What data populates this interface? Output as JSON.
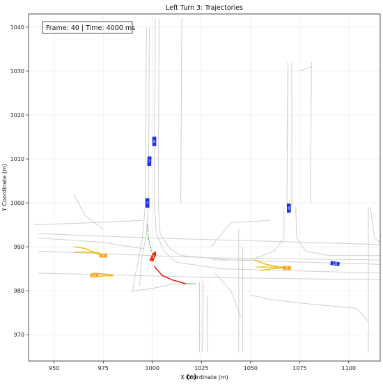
{
  "chart_data": {
    "type": "scatter",
    "title": "Left Turn 3: Trajectories",
    "xlabel": "X Coordinate (m)",
    "ylabel": "Y Coordinate (m)",
    "xlim": [
      937,
      1116
    ],
    "ylim": [
      964,
      1043
    ],
    "x_ticks": [
      950,
      975,
      1000,
      1025,
      1050,
      1075,
      1100
    ],
    "y_ticks": [
      970,
      980,
      990,
      1000,
      1010,
      1020,
      1030,
      1040
    ],
    "grid": true,
    "annotation": "Frame: 40 | Time: 4000 ms",
    "caption": "(c)",
    "lanes": [
      [
        [
          1001.5,
          1042
        ],
        [
          1001,
          1000
        ],
        [
          1002,
          993
        ],
        [
          1006,
          989
        ],
        [
          1012,
          986.5
        ],
        [
          1035,
          985
        ],
        [
          1116,
          984
        ]
      ],
      [
        [
          1003.5,
          1042
        ],
        [
          1003,
          1000
        ],
        [
          1004,
          993
        ],
        [
          1009,
          989.5
        ],
        [
          1015,
          988
        ],
        [
          1040,
          987
        ],
        [
          1116,
          986
        ]
      ],
      [
        [
          997,
          1040
        ],
        [
          996.5,
          1000
        ],
        [
          995,
          992
        ],
        [
          993,
          987
        ],
        [
          991,
          983
        ],
        [
          990,
          979.5
        ]
      ],
      [
        [
          998.5,
          1040
        ],
        [
          998,
          1000
        ],
        [
          997,
          993
        ],
        [
          994.5,
          987
        ],
        [
          993.5,
          981
        ]
      ],
      [
        [
          1015,
          1042
        ],
        [
          1014.5,
          1000
        ]
      ],
      [
        [
          1069,
          1032
        ],
        [
          1068.5,
          999
        ]
      ],
      [
        [
          1071,
          1032
        ],
        [
          1071,
          999
        ]
      ],
      [
        [
          1067,
          999
        ],
        [
          1067,
          992
        ],
        [
          1062,
          989
        ],
        [
          1050,
          987
        ],
        [
          1030,
          987
        ]
      ],
      [
        [
          1073,
          999
        ],
        [
          1073.5,
          992
        ],
        [
          1078,
          989
        ],
        [
          1090,
          988
        ],
        [
          1116,
          988
        ]
      ],
      [
        [
          1069,
          1030
        ],
        [
          1068.5,
          1012
        ]
      ],
      [
        [
          942,
          993
        ],
        [
          1000,
          992
        ],
        [
          1040,
          991.5
        ],
        [
          1116,
          990.5
        ]
      ],
      [
        [
          942,
          989
        ],
        [
          1000,
          988
        ],
        [
          1030,
          987.5
        ],
        [
          1116,
          987
        ]
      ],
      [
        [
          942,
          984
        ],
        [
          990,
          983.5
        ],
        [
          1030,
          983
        ],
        [
          1116,
          982.5
        ]
      ],
      [
        [
          942,
          992
        ],
        [
          975,
          991
        ],
        [
          996,
          989.5
        ]
      ],
      [
        [
          940,
          995
        ],
        [
          970,
          995.5
        ],
        [
          995,
          996
        ]
      ],
      [
        [
          960,
          1002
        ],
        [
          966,
          997
        ],
        [
          975,
          994
        ]
      ],
      [
        [
          1024,
          982
        ],
        [
          1024,
          966
        ]
      ],
      [
        [
          1026,
          982
        ],
        [
          1025.5,
          966
        ]
      ],
      [
        [
          1028,
          979
        ],
        [
          1028,
          966
        ]
      ],
      [
        [
          1044,
          994
        ],
        [
          1044,
          966
        ]
      ],
      [
        [
          1046,
          990
        ],
        [
          1046,
          966
        ]
      ],
      [
        [
          1032,
          984
        ],
        [
          1040,
          980
        ],
        [
          1045,
          974
        ]
      ],
      [
        [
          1050,
          979
        ],
        [
          1060,
          978
        ],
        [
          1080,
          977
        ],
        [
          1104,
          976
        ],
        [
          1110,
          973
        ]
      ],
      [
        [
          1110,
          999
        ],
        [
          1110,
          966
        ]
      ],
      [
        [
          1111,
          999
        ],
        [
          1113,
          992
        ],
        [
          1116,
          991
        ]
      ],
      [
        [
          1030,
          990
        ],
        [
          1040,
          995.5
        ],
        [
          1060,
          996
        ]
      ],
      [
        [
          990,
          980
        ],
        [
          1000,
          980.5
        ],
        [
          1010,
          981.5
        ],
        [
          1020,
          981.5
        ]
      ],
      [
        [
          1081,
          1032
        ],
        [
          1080.5,
          1000
        ]
      ],
      [
        [
          1081,
          1031
        ],
        [
          1075,
          1030
        ]
      ]
    ],
    "trajectories": [
      {
        "color": "#e3170d",
        "width": 1.5,
        "points": [
          [
            1001,
            985.5
          ],
          [
            1005,
            983.5
          ],
          [
            1010,
            982.5
          ],
          [
            1017,
            981.6
          ]
        ]
      },
      {
        "color": "#f5b400",
        "width": 1.3,
        "points": [
          [
            960,
            990
          ],
          [
            966,
            989.6
          ],
          [
            973,
            988.2
          ]
        ]
      },
      {
        "color": "#f5b400",
        "width": 1.3,
        "points": [
          [
            961,
            988.8
          ],
          [
            966,
            988.8
          ],
          [
            973,
            988.6
          ]
        ]
      },
      {
        "color": "#f5b400",
        "width": 1.3,
        "points": [
          [
            970,
            984
          ],
          [
            976,
            983.8
          ],
          [
            980,
            983.6
          ]
        ]
      },
      {
        "color": "#f5b400",
        "width": 1.3,
        "points": [
          [
            971,
            983.2
          ],
          [
            976,
            983.4
          ],
          [
            980,
            983.4
          ]
        ]
      },
      {
        "color": "#f5b400",
        "width": 1.3,
        "points": [
          [
            1052,
            987
          ],
          [
            1058,
            986
          ],
          [
            1067,
            985.2
          ]
        ]
      },
      {
        "color": "#f5b400",
        "width": 1.3,
        "points": [
          [
            1053,
            985.4
          ],
          [
            1060,
            985.4
          ],
          [
            1067,
            985.4
          ]
        ]
      },
      {
        "color": "#f5b400",
        "width": 1.3,
        "points": [
          [
            1055,
            984.6
          ],
          [
            1061,
            985
          ],
          [
            1067,
            985.2
          ]
        ]
      },
      {
        "color": "#2ca02c",
        "width": 1.0,
        "dashed": true,
        "points": [
          [
            997.5,
            995
          ],
          [
            998,
            992
          ],
          [
            999.5,
            989
          ]
        ]
      },
      {
        "color": "#2ca02c",
        "width": 1.0,
        "dashed": true,
        "points": [
          [
            1017,
            981.6
          ],
          [
            1022,
            981.6
          ]
        ]
      }
    ],
    "vehicles": [
      {
        "id": "1",
        "x": 1000.5,
        "y": 987.8,
        "color": "#e3320d",
        "len": 5.0,
        "wid": 2.0,
        "angle": 66,
        "arrow": true
      },
      {
        "id": "3",
        "x": 997.5,
        "y": 1000.0,
        "color": "#1f2fe8",
        "len": 4.8,
        "wid": 2.0,
        "angle": 90
      },
      {
        "id": "6",
        "x": 1001.0,
        "y": 1014.0,
        "color": "#1f2fe8",
        "len": 4.8,
        "wid": 2.0,
        "angle": 90
      },
      {
        "id": "7",
        "x": 998.5,
        "y": 1009.5,
        "color": "#1f2fe8",
        "len": 4.8,
        "wid": 2.0,
        "angle": 88
      },
      {
        "id": "8",
        "x": 1069.5,
        "y": 998.8,
        "color": "#1f2fe8",
        "len": 4.6,
        "wid": 2.0,
        "angle": 90
      },
      {
        "id": "10",
        "x": 1093.0,
        "y": 986.2,
        "color": "#1f2fe8",
        "len": 4.6,
        "wid": 2.0,
        "angle": -8
      },
      {
        "id": "5",
        "x": 975.0,
        "y": 988.0,
        "color": "#f5a623",
        "len": 4.0,
        "wid": 2.0,
        "angle": 0
      },
      {
        "id": "11",
        "x": 970.5,
        "y": 983.5,
        "color": "#f5a623",
        "len": 4.0,
        "wid": 2.0,
        "angle": 0
      },
      {
        "id": "9",
        "x": 1068.5,
        "y": 985.2,
        "color": "#f5a623",
        "len": 4.0,
        "wid": 2.0,
        "angle": 0
      }
    ]
  }
}
